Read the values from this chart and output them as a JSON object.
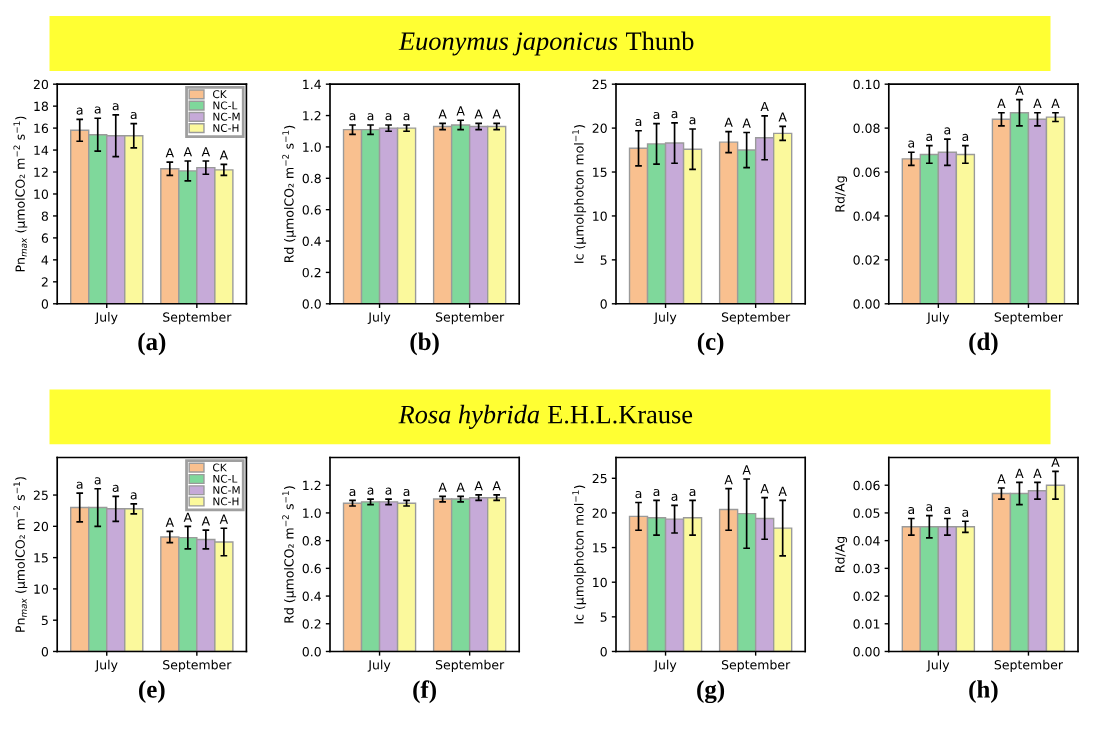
{
  "chart_data": [
    {
      "type": "bar",
      "xlabel": "(a)",
      "ylabel": "Pn$_{max}$ (μmolCO₂ m$^{−2}$ s$^{−1}$)",
      "categories": [
        "July",
        "September"
      ],
      "legend": "top right",
      "series": [
        {
          "name": "CK",
          "color": "#f9c08f",
          "values": [
            15.8,
            12.3
          ],
          "errors": [
            1.0,
            0.6
          ]
        },
        {
          "name": "NC-L",
          "color": "#7fd89b",
          "values": [
            15.4,
            12.1
          ],
          "errors": [
            1.5,
            0.9
          ]
        },
        {
          "name": "NC-M",
          "color": "#c6aad8",
          "values": [
            15.3,
            12.4
          ],
          "errors": [
            1.9,
            0.6
          ]
        },
        {
          "name": "NC-H",
          "color": "#fbf99c",
          "values": [
            15.3,
            12.2
          ],
          "errors": [
            1.1,
            0.5
          ]
        }
      ],
      "ylim": [
        0,
        20
      ],
      "yticks": [
        0,
        2,
        4,
        6,
        8,
        10,
        12,
        14,
        16,
        18,
        20
      ],
      "annotations": [
        "a",
        "A",
        "a",
        "A",
        "a",
        "A",
        "a",
        "A",
        "Euonymus japonicus Thunb"
      ]
    },
    {
      "type": "bar",
      "xlabel": "(b)",
      "ylabel": "Rd (μmolCO₂ m$^{−2}$ s$^{−1}$)",
      "categories": [
        "July",
        "September"
      ],
      "series": [
        {
          "color": "#f9c08f",
          "values": [
            1.11,
            1.13
          ],
          "errors": [
            0.03,
            0.02
          ]
        },
        {
          "color": "#7fd89b",
          "values": [
            1.11,
            1.14
          ],
          "errors": [
            0.03,
            0.03
          ]
        },
        {
          "color": "#c6aad8",
          "values": [
            1.12,
            1.13
          ],
          "errors": [
            0.02,
            0.02
          ]
        },
        {
          "color": "#fbf99c",
          "values": [
            1.12,
            1.13
          ],
          "errors": [
            0.02,
            0.02
          ]
        }
      ],
      "ylim": [
        0,
        1.4
      ],
      "yticks": [
        {
          "value": 0,
          "label": "0.0"
        },
        0.2,
        0.4,
        0.6,
        0.8,
        {
          "value": 1,
          "label": "1.0"
        },
        1.2,
        1.4
      ],
      "annotations": [
        "a",
        "A",
        "a",
        "A",
        "a",
        "A",
        "a",
        "A"
      ]
    },
    {
      "type": "bar",
      "xlabel": "(c)",
      "ylabel": "Ic (μmolphoton mol$^{−1}$)",
      "categories": [
        "July",
        "September"
      ],
      "series": [
        {
          "color": "#f9c08f",
          "values": [
            17.7,
            18.4
          ],
          "errors": [
            2.0,
            1.2
          ]
        },
        {
          "color": "#7fd89b",
          "values": [
            18.2,
            17.5
          ],
          "errors": [
            2.3,
            2.0
          ]
        },
        {
          "color": "#c6aad8",
          "values": [
            18.3,
            18.9
          ],
          "errors": [
            2.3,
            2.5
          ]
        },
        {
          "color": "#fbf99c",
          "values": [
            17.6,
            19.4
          ],
          "errors": [
            2.3,
            0.8
          ]
        }
      ],
      "ylim": [
        0,
        25
      ],
      "yticks": [
        0,
        5,
        10,
        15,
        20,
        25
      ],
      "annotations": [
        "a",
        "A",
        "a",
        "A",
        "a",
        "A",
        "a",
        "A"
      ]
    },
    {
      "type": "bar",
      "xlabel": "(d)",
      "ylabel": "Rd/Ag",
      "categories": [
        "July",
        "September"
      ],
      "series": [
        {
          "color": "#f9c08f",
          "values": [
            0.066,
            0.084
          ],
          "errors": [
            0.003,
            0.003
          ]
        },
        {
          "color": "#7fd89b",
          "values": [
            0.068,
            0.087
          ],
          "errors": [
            0.004,
            0.006
          ]
        },
        {
          "color": "#c6aad8",
          "values": [
            0.069,
            0.084
          ],
          "errors": [
            0.006,
            0.003
          ]
        },
        {
          "color": "#fbf99c",
          "values": [
            0.068,
            0.085
          ],
          "errors": [
            0.004,
            0.002
          ]
        }
      ],
      "ylim": [
        0,
        0.1
      ],
      "yticks": [
        {
          "value": 0,
          "label": "0.00"
        },
        0.02,
        0.04,
        0.06,
        0.08,
        {
          "value": 0.1,
          "label": "0.10"
        }
      ],
      "annotations": [
        "a",
        "A",
        "a",
        "A",
        "a",
        "A",
        "a",
        "A"
      ]
    },
    {
      "type": "bar",
      "xlabel": "(e)",
      "ylabel": "Pn$_{max}$ (μmolCO₂ m$^{−2}$ s$^{−1}$)",
      "categories": [
        "July",
        "September"
      ],
      "legend": "top right",
      "series": [
        {
          "name": "CK",
          "color": "#f9c08f",
          "values": [
            23.0,
            18.3
          ],
          "errors": [
            2.3,
            0.9
          ]
        },
        {
          "name": "NC-L",
          "color": "#7fd89b",
          "values": [
            23.0,
            18.2
          ],
          "errors": [
            3.0,
            1.8
          ]
        },
        {
          "name": "NC-M",
          "color": "#c6aad8",
          "values": [
            22.8,
            17.9
          ],
          "errors": [
            2.0,
            1.5
          ]
        },
        {
          "name": "NC-H",
          "color": "#fbf99c",
          "values": [
            22.8,
            17.5
          ],
          "errors": [
            0.8,
            2.2
          ]
        }
      ],
      "ylim": [
        0,
        31
      ],
      "yticks": [
        0,
        5,
        10,
        15,
        20,
        25
      ],
      "annotations": [
        "a",
        "A",
        "a",
        "A",
        "a",
        "A",
        "a",
        "A",
        "Rosa hybrida E.H.L.Krause"
      ]
    },
    {
      "type": "bar",
      "xlabel": "(f)",
      "ylabel": "Rd (μmolCO₂ m$^{−2}$ s$^{−1}$)",
      "categories": [
        "July",
        "September"
      ],
      "series": [
        {
          "color": "#f9c08f",
          "values": [
            1.07,
            1.1
          ],
          "errors": [
            0.02,
            0.02
          ]
        },
        {
          "color": "#7fd89b",
          "values": [
            1.08,
            1.1
          ],
          "errors": [
            0.02,
            0.02
          ]
        },
        {
          "color": "#c6aad8",
          "values": [
            1.08,
            1.11
          ],
          "errors": [
            0.02,
            0.02
          ]
        },
        {
          "color": "#fbf99c",
          "values": [
            1.07,
            1.11
          ],
          "errors": [
            0.02,
            0.02
          ]
        }
      ],
      "ylim": [
        0,
        1.4
      ],
      "yticks": [
        {
          "value": 0,
          "label": "0.0"
        },
        0.2,
        0.4,
        0.6,
        0.8,
        {
          "value": 1,
          "label": "1.0"
        },
        1.2
      ],
      "annotations": [
        "a",
        "A",
        "a",
        "A",
        "a",
        "A",
        "a",
        "A"
      ]
    },
    {
      "type": "bar",
      "xlabel": "(g)",
      "ylabel": "Ic (μmolphoton mol$^{−1}$)",
      "categories": [
        "July",
        "September"
      ],
      "series": [
        {
          "color": "#f9c08f",
          "values": [
            19.5,
            20.5
          ],
          "errors": [
            2.0,
            3.0
          ]
        },
        {
          "color": "#7fd89b",
          "values": [
            19.3,
            19.9
          ],
          "errors": [
            2.5,
            5.0
          ]
        },
        {
          "color": "#c6aad8",
          "values": [
            19.1,
            19.2
          ],
          "errors": [
            2.0,
            3.0
          ]
        },
        {
          "color": "#fbf99c",
          "values": [
            19.3,
            17.8
          ],
          "errors": [
            2.5,
            4.0
          ]
        }
      ],
      "ylim": [
        0,
        28
      ],
      "yticks": [
        0,
        5,
        10,
        15,
        20,
        25
      ],
      "annotations": [
        "a",
        "A",
        "a",
        "A",
        "a",
        "A",
        "a",
        "A"
      ]
    },
    {
      "type": "bar",
      "xlabel": "(h)",
      "ylabel": "Rd/Ag",
      "categories": [
        "July",
        "September"
      ],
      "series": [
        {
          "color": "#f9c08f",
          "values": [
            0.045,
            0.057
          ],
          "errors": [
            0.003,
            0.002
          ]
        },
        {
          "color": "#7fd89b",
          "values": [
            0.045,
            0.057
          ],
          "errors": [
            0.004,
            0.004
          ]
        },
        {
          "color": "#c6aad8",
          "values": [
            0.045,
            0.058
          ],
          "errors": [
            0.003,
            0.003
          ]
        },
        {
          "color": "#fbf99c",
          "values": [
            0.045,
            0.06
          ],
          "errors": [
            0.002,
            0.005
          ]
        }
      ],
      "ylim": [
        0,
        0.07
      ],
      "yticks": [
        {
          "value": 0,
          "label": "0.00"
        },
        0.01,
        0.02,
        0.03,
        0.04,
        0.05,
        0.06
      ],
      "annotations": [
        "a",
        "A",
        "a",
        "A",
        "a",
        "A",
        "a",
        "A"
      ]
    }
  ]
}
